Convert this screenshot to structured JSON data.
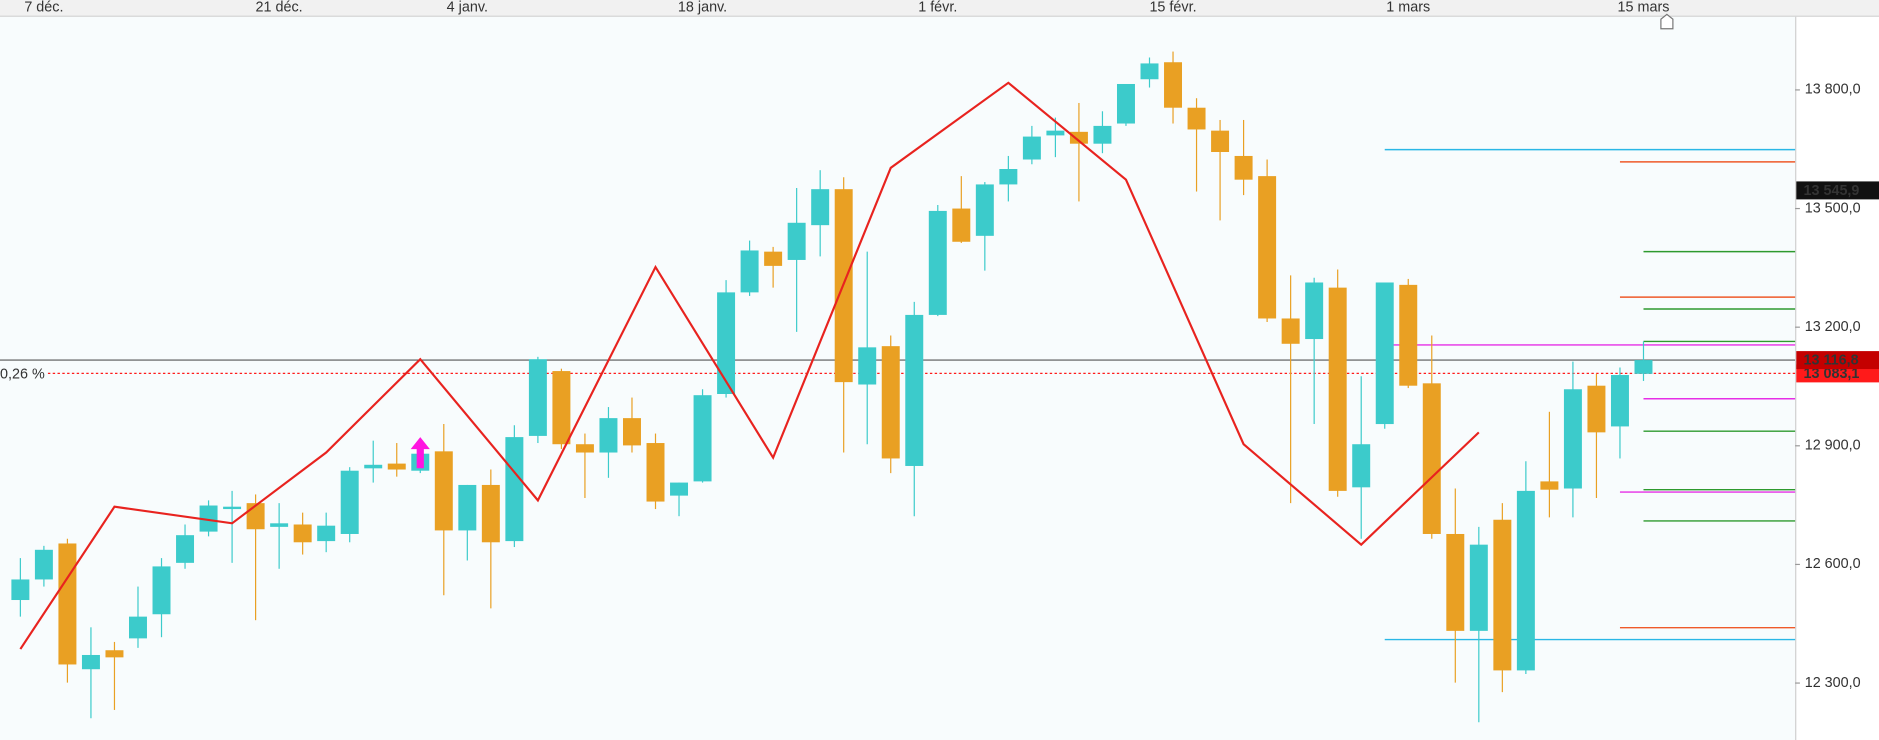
{
  "chart_data": {
    "type": "candlestick",
    "categories": [
      null,
      "7 déc.",
      null,
      null,
      null,
      null,
      null,
      null,
      null,
      null,
      null,
      "21 déc.",
      null,
      null,
      null,
      null,
      null,
      null,
      null,
      "4 janv.",
      null,
      null,
      null,
      null,
      null,
      null,
      null,
      null,
      null,
      "18 janv.",
      null,
      null,
      null,
      null,
      null,
      null,
      null,
      null,
      null,
      "1 févr.",
      null,
      null,
      null,
      null,
      null,
      null,
      null,
      null,
      null,
      "15 févr.",
      null,
      null,
      null,
      null,
      null,
      null,
      null,
      null,
      null,
      "1 mars",
      null,
      null,
      null,
      null,
      null,
      null,
      null,
      null,
      null,
      "15 mars"
    ],
    "open": [
      12510,
      12562,
      12653,
      12335,
      12383,
      12413,
      12474,
      12604,
      12683,
      12740,
      12755,
      12695,
      12701,
      12659,
      12677,
      12843,
      12855,
      12837,
      12886,
      12686,
      12801,
      12659,
      12925,
      13089,
      12904,
      12883,
      12970,
      12907,
      12774,
      12810,
      13031,
      13288,
      13391,
      13370,
      13458,
      13549,
      13055,
      13152,
      12849,
      13231,
      13500,
      13431,
      13561,
      13624,
      13685,
      13694,
      13664,
      13715,
      13827,
      13870,
      13755,
      13697,
      13633,
      13582,
      13222,
      13170,
      13300,
      12795,
      12955,
      13307,
      13058,
      12677,
      12432,
      12713,
      12332,
      12810,
      12792,
      13052,
      12949,
      13082
    ],
    "high": [
      12616,
      12647,
      12665,
      12441,
      12404,
      12544,
      12616,
      12701,
      12762,
      12786,
      12777,
      12755,
      12731,
      12731,
      12846,
      12913,
      12907,
      12886,
      12955,
      12801,
      12840,
      12952,
      13125,
      13095,
      12931,
      12998,
      13022,
      12931,
      12807,
      13043,
      13319,
      13419,
      13403,
      13552,
      13597,
      13579,
      13391,
      13179,
      13264,
      13509,
      13582,
      13567,
      13633,
      13709,
      13730,
      13767,
      13746,
      13815,
      13882,
      13897,
      13779,
      13724,
      13724,
      13624,
      13331,
      13325,
      13346,
      13076,
      13313,
      13322,
      13179,
      12792,
      12695,
      12755,
      12861,
      12986,
      13113,
      13082,
      13098,
      13164
    ],
    "low": [
      12468,
      12544,
      12301,
      12211,
      12232,
      12389,
      12416,
      12589,
      12671,
      12604,
      12459,
      12589,
      12625,
      12631,
      12656,
      12807,
      12822,
      12831,
      12522,
      12610,
      12489,
      12644,
      12907,
      12892,
      12768,
      12819,
      12883,
      12740,
      12722,
      12807,
      13022,
      13279,
      13300,
      13188,
      13379,
      12883,
      12904,
      12831,
      12722,
      13228,
      13413,
      13343,
      13518,
      13612,
      13630,
      13518,
      13640,
      13709,
      13806,
      13715,
      13543,
      13470,
      13534,
      13213,
      12755,
      12955,
      12771,
      12665,
      12943,
      13046,
      12665,
      12301,
      12201,
      12277,
      12323,
      12719,
      12719,
      12768,
      12868,
      13064
    ],
    "close": [
      12562,
      12637,
      12347,
      12371,
      12365,
      12468,
      12595,
      12674,
      12749,
      12746,
      12689,
      12704,
      12656,
      12698,
      12837,
      12852,
      12840,
      12880,
      12686,
      12801,
      12656,
      12922,
      13119,
      12904,
      12883,
      12970,
      12901,
      12759,
      12807,
      13028,
      13288,
      13394,
      13355,
      13464,
      13549,
      13061,
      13149,
      12868,
      13231,
      13494,
      13416,
      13561,
      13600,
      13682,
      13697,
      13664,
      13709,
      13815,
      13867,
      13755,
      13700,
      13643,
      13573,
      13222,
      13158,
      13313,
      12786,
      12904,
      13313,
      13052,
      12677,
      12432,
      12650,
      12332,
      12786,
      12789,
      13043,
      12934,
      13079,
      13116.8
    ],
    "up_color": "#3ccbcb",
    "down_color": "#e9a023",
    "ylim": [
      12156,
      13985
    ],
    "yticks": [
      {
        "value": 12300,
        "label": "12 300,0"
      },
      {
        "value": 12600,
        "label": "12 600,0"
      },
      {
        "value": 12900,
        "label": "12 900,0"
      },
      {
        "value": 13200,
        "label": "13 200,0"
      },
      {
        "value": 13500,
        "label": "13 500,0"
      },
      {
        "value": 13800,
        "label": "13 800,0"
      }
    ],
    "zigzag": {
      "color": "#e8231f",
      "x": [
        0,
        4,
        9,
        13,
        17,
        22,
        27,
        32,
        37,
        42,
        47,
        52,
        57,
        62
      ],
      "values": [
        12386,
        12746,
        12704,
        12883,
        13119,
        12762,
        13352,
        12870,
        13603,
        13818,
        13573,
        12904,
        12650,
        12934
      ]
    },
    "levels": [
      {
        "value": 13649,
        "color": "#2ab7e6",
        "from": 58
      },
      {
        "value": 12410,
        "color": "#2ab7e6",
        "from": 58
      },
      {
        "value": 13618,
        "color": "#ef5a2a",
        "from": 68
      },
      {
        "value": 13276,
        "color": "#ef5a2a",
        "from": 68
      },
      {
        "value": 12440,
        "color": "#ef5a2a",
        "from": 68
      },
      {
        "value": 13391,
        "color": "#2e9a2e",
        "from": 69
      },
      {
        "value": 13246,
        "color": "#2e9a2e",
        "from": 69
      },
      {
        "value": 13164,
        "color": "#2e9a2e",
        "from": 69
      },
      {
        "value": 12937,
        "color": "#2e9a2e",
        "from": 69
      },
      {
        "value": 12789,
        "color": "#2e9a2e",
        "from": 69
      },
      {
        "value": 12710,
        "color": "#2e9a2e",
        "from": 69
      },
      {
        "value": 13155,
        "color": "#e62ee6",
        "from": 58
      },
      {
        "value": 13019,
        "color": "#e62ee6",
        "from": 69
      },
      {
        "value": 12783,
        "color": "#e62ee6",
        "from": 68
      }
    ],
    "signals": {
      "x": [
        17
      ],
      "color": "#ff14e0"
    },
    "price_marks": [
      {
        "value": 13545.9,
        "label": "13 545,9",
        "color": "#111111"
      },
      {
        "value": 13083.1,
        "label": "13 083,1",
        "color": "#ff1a1a",
        "line": "dotted",
        "annotation": "0,26 %"
      },
      {
        "value": 13116.8,
        "label": "13 116,8",
        "color": "#c40000",
        "line": "solid"
      }
    ]
  }
}
